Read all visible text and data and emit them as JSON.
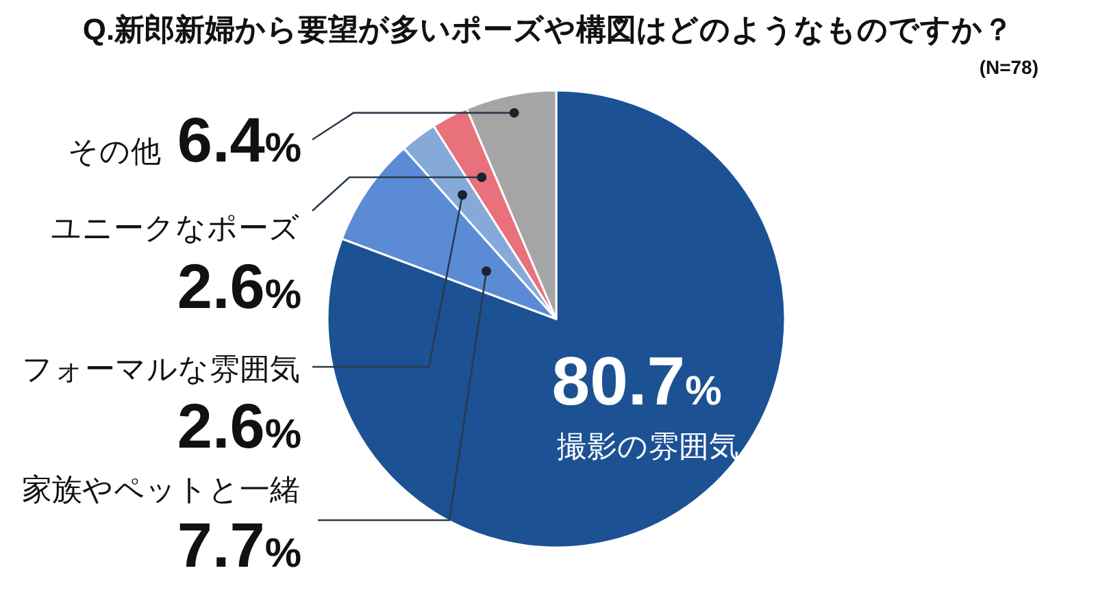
{
  "chart_data": {
    "type": "pie",
    "title": "Q.新郎新婦から要望が多いポーズや構図はどのようなものですか？",
    "subtitle": "(N=78)",
    "categories": [
      "撮影の雰囲気",
      "家族やペットと一緒",
      "フォーマルな雰囲気",
      "ユニークなポーズ",
      "その他"
    ],
    "values": [
      80.7,
      7.7,
      2.6,
      2.6,
      6.4
    ],
    "colors": [
      "#1c5294",
      "#5b8bd5",
      "#85aad9",
      "#e8717b",
      "#a5a5a5"
    ],
    "value_labels": [
      "80.7%",
      "7.7%",
      "2.6%",
      "2.6%",
      "6.4%"
    ]
  }
}
